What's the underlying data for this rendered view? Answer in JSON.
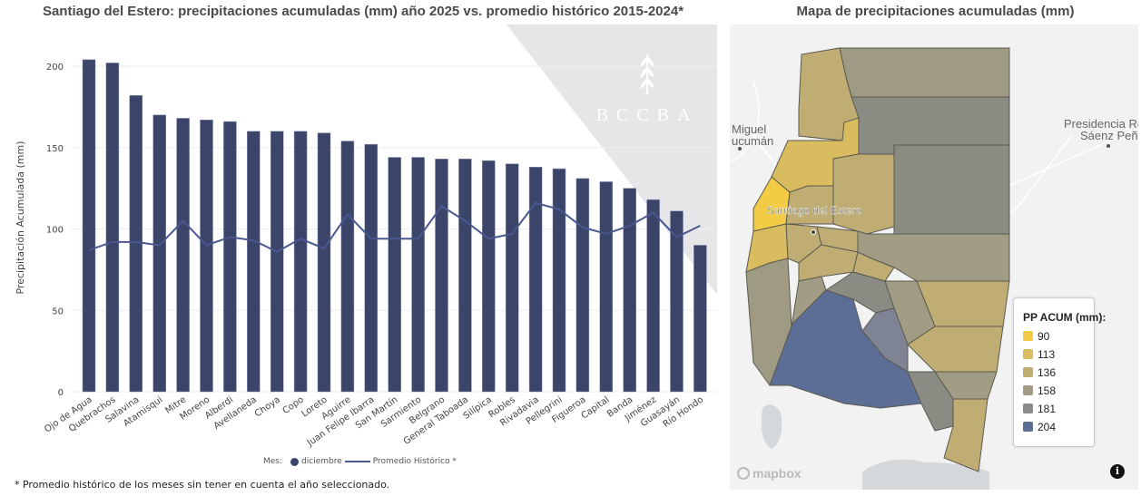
{
  "chart_data": {
    "type": "bar",
    "title": "Santiago del Estero: precipitaciones acumuladas (mm) año 2025 vs. promedio histórico 2015-2024*",
    "xlabel": "",
    "ylabel": "Precipitación Acumulada (mm)",
    "ylim": [
      0,
      210
    ],
    "yticks": [
      0,
      50,
      100,
      150,
      200
    ],
    "grid": true,
    "legend_position": "bottom",
    "categories": [
      "Ojo de Agua",
      "Quebrachos",
      "Salavina",
      "Atamisqui",
      "Mitre",
      "Moreno",
      "Alberdi",
      "Avellaneda",
      "Choya",
      "Copo",
      "Loreto",
      "Aguirre",
      "Juan Felipe Ibarra",
      "San Martín",
      "Sarmiento",
      "Belgrano",
      "General Taboada",
      "Silípica",
      "Robles",
      "Rivadavia",
      "Pellegrini",
      "Figueroa",
      "Capital",
      "Banda",
      "Jiménez",
      "Guasayán",
      "Río Hondo"
    ],
    "series": [
      {
        "name": "diciembre",
        "kind": "bar",
        "color": "#3b4469",
        "values": [
          204,
          202,
          182,
          170,
          168,
          167,
          166,
          160,
          160,
          160,
          159,
          154,
          152,
          144,
          144,
          143,
          143,
          142,
          140,
          138,
          137,
          131,
          129,
          125,
          118,
          111,
          90
        ]
      },
      {
        "name": "Promedio Histórico *",
        "kind": "line",
        "color": "#4a5890",
        "values": [
          87,
          92,
          92,
          90,
          105,
          90,
          95,
          93,
          86,
          94,
          88,
          109,
          94,
          94,
          94,
          114,
          105,
          94,
          97,
          116,
          112,
          101,
          97,
          102,
          110,
          95,
          102
        ]
      }
    ],
    "legend": {
      "prefix": "Mes:",
      "items": [
        "diciembre",
        "Promedio Histórico *"
      ]
    },
    "footnote": "* Promedio histórico de los meses sin tener en cuenta el año seleccionado."
  },
  "watermark": {
    "text": "BCCBA"
  },
  "map": {
    "title": "Mapa de precipitaciones acumuladas (mm)",
    "labels": {
      "city1": "Santiago del Estero",
      "city2a": "Miguel",
      "city2b": "ucumán",
      "city3a": "Presidencia Ro",
      "city3b": "Sáenz Peña"
    },
    "legend": {
      "title": "PP ACUM (mm):",
      "items": [
        {
          "label": "90",
          "color": "#f2cc45"
        },
        {
          "label": "113",
          "color": "#d9bc5f"
        },
        {
          "label": "136",
          "color": "#bfad73"
        },
        {
          "label": "158",
          "color": "#a39c84"
        },
        {
          "label": "181",
          "color": "#8a8b8a"
        },
        {
          "label": "204",
          "color": "#5c6e96"
        }
      ]
    },
    "attribution": "mapbox",
    "info_icon": "info-icon"
  }
}
